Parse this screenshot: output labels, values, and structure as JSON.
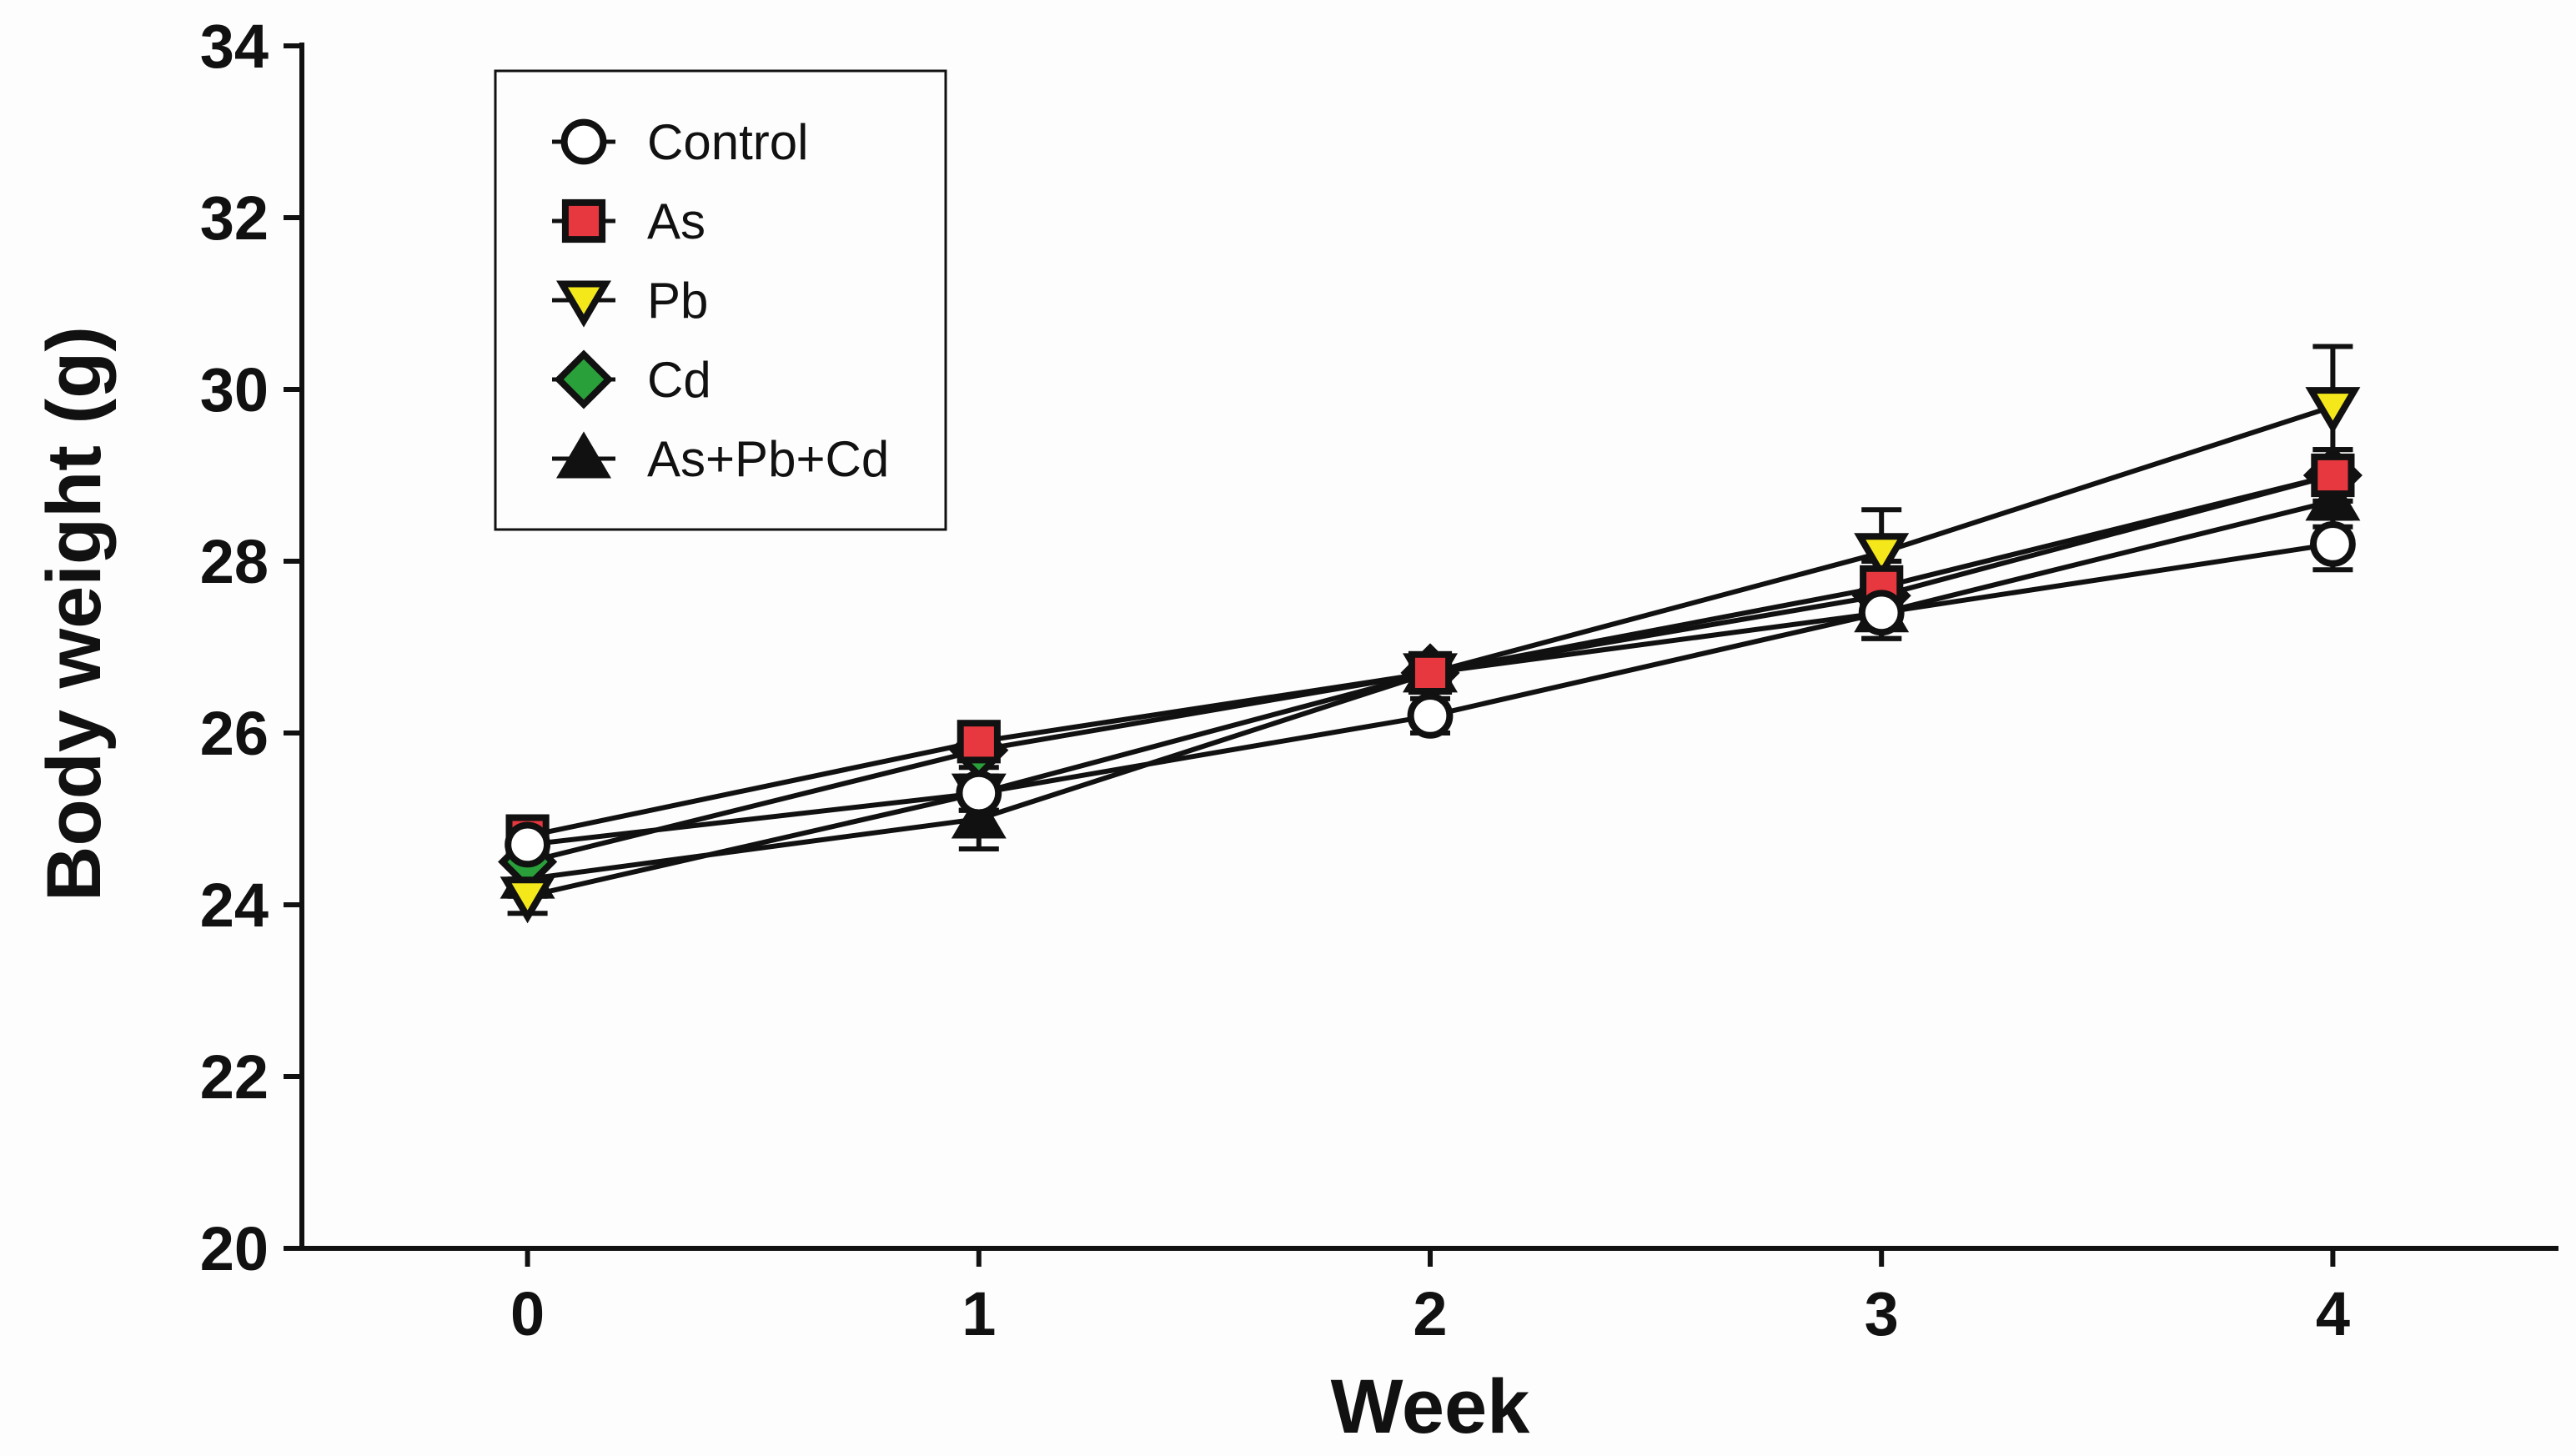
{
  "chart_data": {
    "type": "line",
    "title": "",
    "xlabel": "Week",
    "ylabel": "Body weight (g)",
    "x": [
      0,
      1,
      2,
      3,
      4
    ],
    "x_tick_labels": [
      "0",
      "1",
      "2",
      "3",
      "4"
    ],
    "xlim": [
      -0.5,
      4.5
    ],
    "ylim": [
      20,
      34
    ],
    "y_ticks": [
      20,
      22,
      24,
      26,
      28,
      30,
      32,
      34
    ],
    "y_tick_labels": [
      "20",
      "22",
      "24",
      "26",
      "28",
      "30",
      "32",
      "34"
    ],
    "grid": false,
    "legend_position": "top-left",
    "series": [
      {
        "name": "Control",
        "marker": "circle",
        "fill": "#ffffff",
        "values": [
          24.7,
          25.3,
          26.2,
          27.4,
          28.2
        ],
        "error": [
          0.2,
          0.2,
          0.2,
          0.3,
          0.3
        ]
      },
      {
        "name": "As",
        "marker": "square",
        "fill": "#e8383f",
        "values": [
          24.8,
          25.9,
          26.7,
          27.7,
          29.0
        ],
        "error": [
          0.2,
          0.2,
          0.2,
          0.3,
          0.3
        ]
      },
      {
        "name": "Pb",
        "marker": "triangle-down",
        "fill": "#f4e81b",
        "values": [
          24.1,
          25.3,
          26.7,
          28.1,
          29.8
        ],
        "error": [
          0.2,
          0.2,
          0.2,
          0.5,
          0.7
        ]
      },
      {
        "name": "Cd",
        "marker": "diamond",
        "fill": "#2aa03a",
        "values": [
          24.5,
          25.8,
          26.7,
          27.6,
          29.0
        ],
        "error": [
          0.2,
          0.2,
          0.2,
          0.3,
          0.3
        ]
      },
      {
        "name": "As+Pb+Cd",
        "marker": "triangle-up",
        "fill": "#111111",
        "values": [
          24.3,
          25.0,
          26.7,
          27.4,
          28.7
        ],
        "error": [
          0.2,
          0.35,
          0.2,
          0.3,
          0.3
        ]
      }
    ]
  }
}
